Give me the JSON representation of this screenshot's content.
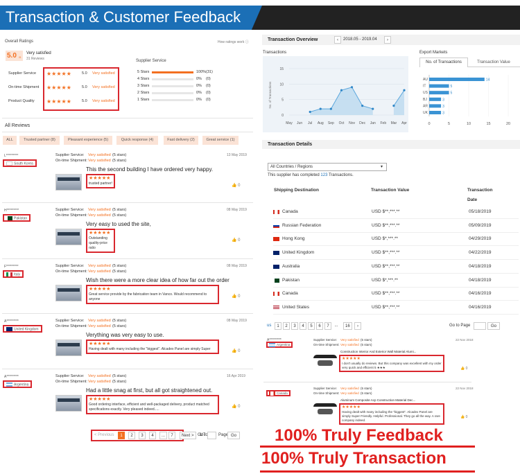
{
  "banner": {
    "title": "Transaction & Customer Feedback"
  },
  "ratings": {
    "overall_label": "Overall Ratings",
    "how_link": "How ratings work",
    "score": "5.0",
    "score_suffix": "/5",
    "verdict": "Very satisfied",
    "reviews_count": "31 Reviews",
    "service_header": "Supplier Service",
    "rows": [
      {
        "label": "Supplier Service",
        "value": "5.0",
        "text": "Very satisfied"
      },
      {
        "label": "On-time Shipment",
        "value": "5.0",
        "text": "Very satisfied"
      },
      {
        "label": "Product Quality",
        "value": "5.0",
        "text": "Very satisfied"
      }
    ],
    "breakdown": [
      {
        "label": "5 Stars",
        "pct": "100%",
        "count": "(31)",
        "fill": 1.0
      },
      {
        "label": "4 Stars",
        "pct": "0%",
        "count": "(0)",
        "fill": 0
      },
      {
        "label": "3 Stars",
        "pct": "0%",
        "count": "(0)",
        "fill": 0
      },
      {
        "label": "2 Stars",
        "pct": "0%",
        "count": "(0)",
        "fill": 0
      },
      {
        "label": "1 Stars",
        "pct": "0%",
        "count": "(0)",
        "fill": 0
      }
    ]
  },
  "reviews": {
    "title": "All Reviews",
    "tags": [
      "ALL",
      "Trusted partner (8)",
      "Pleasant experience (5)",
      "Quick response (4)",
      "Fast delivery (2)",
      "Great service (1)"
    ],
    "items": [
      {
        "user": "L*********",
        "country": "South Korea",
        "date": "13 May 2019",
        "ss_label": "Supplier Service:",
        "ss": "Very satisfied",
        "ss_stars": "(5 stars)",
        "os_label": "On-time Shipment:",
        "os": "Very satisfied",
        "os_stars": "(5 stars)",
        "headline": "This the second building I have ordered very happy.",
        "comment": "trusted partner!",
        "likes": "0"
      },
      {
        "user": "H*********",
        "country": "Pakistan",
        "date": "08 May 2019",
        "ss_label": "Supplier Service:",
        "ss": "Very satisfied",
        "ss_stars": "(5 stars)",
        "os_label": "On-time Shipment:",
        "os": "Very satisfied",
        "os_stars": "(5 stars)",
        "headline": "Very easy to used the site,",
        "comment": "Outstanding quality-price ratio",
        "likes": "0"
      },
      {
        "user": "F*********",
        "country": "Italy",
        "date": "08 May 2019",
        "ss_label": "Supplier Service:",
        "ss": "Very satisfied",
        "ss_stars": "(5 stars)",
        "os_label": "On-time Shipment:",
        "os": "Very satisfied",
        "os_stars": "(5 stars)",
        "headline": "Wish there were a more clear idea of how far out the order",
        "comment": "Great service provide by the fabrication team in Vanco. Would recommend to anyone",
        "likes": "0"
      },
      {
        "user": "A*********",
        "country": "United Kingdom",
        "date": "08 May 2019",
        "ss_label": "Supplier Service:",
        "ss": "Very satisfied",
        "ss_stars": "(5 stars)",
        "os_label": "On-time Shipment:",
        "os": "Very satisfied",
        "os_stars": "(5 stars)",
        "headline": "Verything was very easy to use.",
        "comment": "Having dealt with many including the \"biggest\". Alcadex Panel are simply Super",
        "likes": "0"
      },
      {
        "user": "A*********",
        "country": "Argentina",
        "date": "16 Apr 2019",
        "ss_label": "Supplier Service:",
        "ss": "Very satisfied",
        "ss_stars": "(5 stars)",
        "os_label": "On-time Shipment:",
        "os": "Very satisfied",
        "os_stars": "(5 stars)",
        "headline": "Had a little snag at first, but all got straightened out.",
        "comment": "Good ordering interface, efficient and well-packaged delivery, product matched specifications exactly. Very pleased indeed.....",
        "likes": "0"
      }
    ],
    "pager": {
      "prev": "< Previous",
      "pages": [
        "1",
        "2",
        "3",
        "4",
        "...",
        "7"
      ],
      "next": "Next >",
      "total": "1/7",
      "goto": "Go to",
      "page": "Page",
      "go": "Go"
    }
  },
  "overview": {
    "title": "Transaction Overview",
    "range": "2018.05 - 2019.04",
    "prev": "‹",
    "next": "›",
    "transactions_label": "Transactions",
    "export_label": "Export Markets",
    "tab1": "No. of Transactions",
    "tab2": "Transaction Value"
  },
  "chart_data": [
    {
      "type": "line",
      "title": "Transactions",
      "ylabel": "No. of Transactions",
      "categories": [
        "May",
        "Jun",
        "Jul",
        "Aug",
        "Sep",
        "Oct",
        "Nov",
        "Dec",
        "Jan",
        "Feb",
        "Mar",
        "Apr"
      ],
      "values": [
        null,
        null,
        1,
        2,
        2,
        8,
        9,
        3,
        2,
        null,
        3,
        8
      ],
      "ylim": [
        0,
        15
      ],
      "yticks": [
        0,
        5,
        10,
        15
      ]
    },
    {
      "type": "bar",
      "title": "Export Markets",
      "categories": [
        "AU",
        "IT",
        "US",
        "BJ",
        "AR",
        "UK"
      ],
      "values": [
        14,
        5,
        5,
        3,
        3,
        3
      ],
      "xlim": [
        0,
        20
      ],
      "xticks": [
        0,
        5,
        10,
        15,
        20
      ]
    }
  ],
  "details": {
    "title": "Transaction Details",
    "region_select": "All Countries / Regions",
    "summary_prefix": "This supplier has completed",
    "summary_count": "123",
    "summary_suffix": "Transactions.",
    "col_dest": "Shipping Destination",
    "col_value": "Transaction Value",
    "col_date1": "Transaction",
    "col_date2": "Date",
    "rows": [
      {
        "country": "Canada",
        "value": "USD $**,***.**",
        "date": "05/18/2019",
        "flag": "ca"
      },
      {
        "country": "Russian Federation",
        "value": "USD $**,***.**",
        "date": "05/09/2019",
        "flag": "ru"
      },
      {
        "country": "Hong Kong",
        "value": "USD $*,***.**",
        "date": "04/29/2019",
        "flag": "hk"
      },
      {
        "country": "United Kingdom",
        "value": "USD $**,***.**",
        "date": "04/22/2019",
        "flag": "uk"
      },
      {
        "country": "Australia",
        "value": "USD $**,***.**",
        "date": "04/18/2019",
        "flag": "au"
      },
      {
        "country": "Pakistan",
        "value": "USD $*,***.**",
        "date": "04/18/2019",
        "flag": "pk"
      },
      {
        "country": "Canada",
        "value": "USD $**,***.**",
        "date": "04/16/2019",
        "flag": "ca"
      },
      {
        "country": "United States",
        "value": "USD $**,***.**",
        "date": "04/16/2019",
        "flag": "us"
      }
    ],
    "pager": {
      "prev": "us",
      "pages": [
        "1",
        "2",
        "3",
        "4",
        "5",
        "6",
        "7",
        "...",
        "16"
      ],
      "next": "›",
      "goto": "Go to Page",
      "go": "Go"
    }
  },
  "mini_reviews": [
    {
      "user": "A*********",
      "country": "Argentina",
      "date": "22 Nov 2018",
      "ss_label": "Supplier Service:",
      "ss": "Very satisfied",
      "ss_stars": "(5 stars)",
      "os_label": "On-time Shipment:",
      "os": "Very satisfied",
      "os_stars": "(5 stars)",
      "product": "Construction Interior And Exterior Wall Material Alumi...",
      "comment": "I don't usually do reviews. But this company was excellent with my order very quick and efficient 5 ★★★",
      "likes": "0"
    },
    {
      "user": "",
      "country": "Canada",
      "date": "22 Nov 2018",
      "ss_label": "Supplier Service:",
      "ss": "Very satisfied",
      "ss_stars": "(5 stars)",
      "os_label": "On-time Shipment:",
      "os": "Very satisfied",
      "os_stars": "(5 stars)",
      "product": "Aluminum Composite Acp Construction Material Dec...",
      "comment": "Having dealt with many including the \"biggest\". Alcadex Panel are simply Super Friendly. Helpful. Professional. They go all the way. A rare company indeed.",
      "likes": "0"
    }
  ],
  "promo": {
    "line1": "100% Truly Feedback",
    "line2": "100% Truly Transaction"
  },
  "colors": {
    "accent": "#f37021",
    "brand_blue": "#1b6fb6",
    "promo_red": "#e0201f"
  }
}
